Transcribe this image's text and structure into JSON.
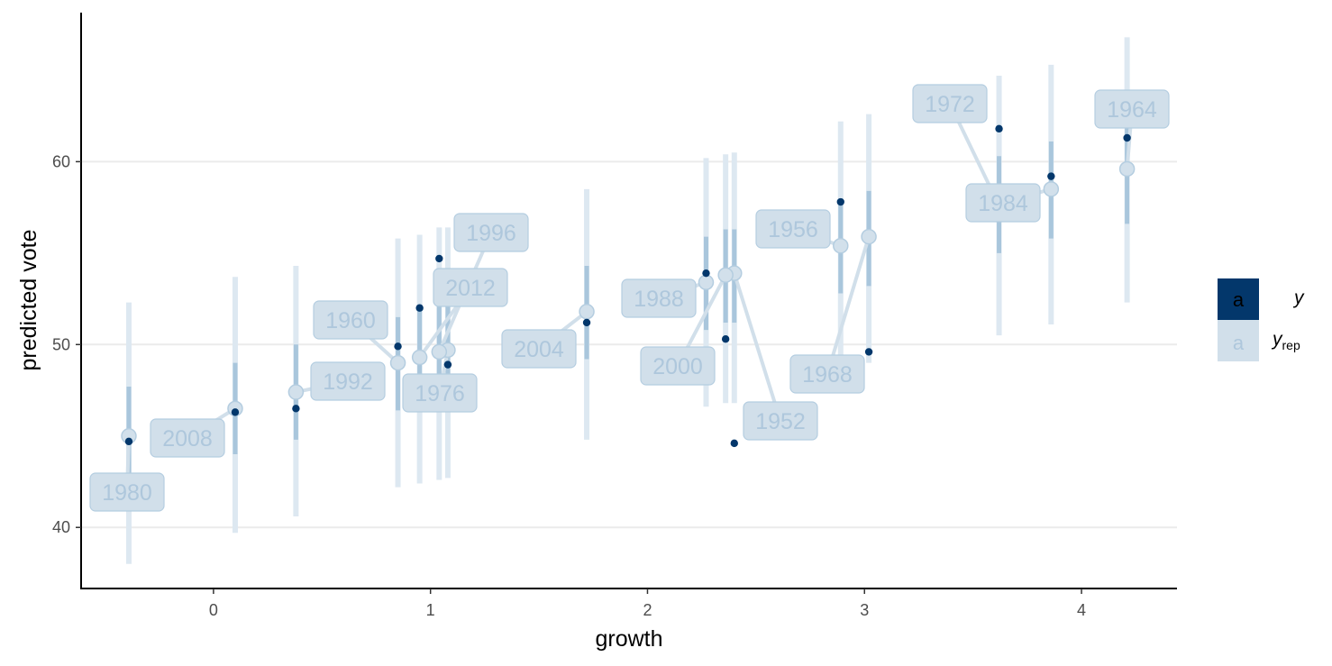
{
  "colors": {
    "y": "#03376b",
    "yrep_point": "#d2e0eb",
    "yrep_inner": "#a9c6dc",
    "yrep_outer": "#dde8f1",
    "label_fill": "#d1dfea",
    "label_border": "#b4cde0",
    "label_text": "#aec7dc",
    "grid": "#ebebeb",
    "axis": "#000000"
  },
  "legend": {
    "key_glyph": "a",
    "y_label": "y",
    "yrep_label_main": "y",
    "yrep_label_sub": "rep"
  },
  "chart_data": {
    "type": "scatter",
    "xlabel": "growth",
    "ylabel": "predicted vote",
    "xlim": [
      -0.61,
      4.44
    ],
    "ylim": [
      36.66,
      68.15
    ],
    "x_ticks": [
      0,
      1,
      2,
      3,
      4
    ],
    "y_ticks": [
      40,
      50,
      60
    ],
    "grid": "horizontal major",
    "legend_position": "right",
    "points": [
      {
        "year": "1952",
        "growth": 2.4,
        "vote": 44.6,
        "yrep_median": 53.9,
        "inner": [
          51.2,
          56.3
        ],
        "outer": [
          46.8,
          60.5
        ]
      },
      {
        "year": "1956",
        "growth": 2.89,
        "vote": 57.8,
        "yrep_median": 55.4,
        "inner": [
          52.8,
          57.9
        ],
        "outer": [
          48.6,
          62.2
        ]
      },
      {
        "year": "1960",
        "growth": 0.85,
        "vote": 49.9,
        "yrep_median": 49.0,
        "inner": [
          46.4,
          51.5
        ],
        "outer": [
          42.2,
          55.8
        ]
      },
      {
        "year": "1964",
        "growth": 4.21,
        "vote": 61.3,
        "yrep_median": 59.6,
        "inner": [
          56.6,
          62.4
        ],
        "outer": [
          52.3,
          66.8
        ]
      },
      {
        "year": "1968",
        "growth": 3.02,
        "vote": 49.6,
        "yrep_median": 55.9,
        "inner": [
          53.2,
          58.4
        ],
        "outer": [
          49.0,
          62.6
        ]
      },
      {
        "year": "1972",
        "growth": 3.62,
        "vote": 61.8,
        "yrep_median": 57.6,
        "inner": [
          55.0,
          60.3
        ],
        "outer": [
          50.5,
          64.7
        ]
      },
      {
        "year": "1976",
        "growth": 1.08,
        "vote": 48.9,
        "yrep_median": 49.7,
        "inner": [
          47.2,
          52.3
        ],
        "outer": [
          42.7,
          56.4
        ]
      },
      {
        "year": "1980",
        "growth": -0.39,
        "vote": 44.7,
        "yrep_median": 45.0,
        "inner": [
          42.3,
          47.7
        ],
        "outer": [
          38.0,
          52.3
        ]
      },
      {
        "year": "1984",
        "growth": 3.86,
        "vote": 59.2,
        "yrep_median": 58.5,
        "inner": [
          55.8,
          61.1
        ],
        "outer": [
          51.1,
          65.3
        ]
      },
      {
        "year": "1988",
        "growth": 2.27,
        "vote": 53.9,
        "yrep_median": 53.4,
        "inner": [
          50.8,
          55.9
        ],
        "outer": [
          46.6,
          60.2
        ]
      },
      {
        "year": "1992",
        "growth": 0.38,
        "vote": 46.5,
        "yrep_median": 47.4,
        "inner": [
          44.8,
          50.0
        ],
        "outer": [
          40.6,
          54.3
        ]
      },
      {
        "year": "1996",
        "growth": 1.04,
        "vote": 54.7,
        "yrep_median": 49.6,
        "inner": [
          47.0,
          52.2
        ],
        "outer": [
          42.6,
          56.4
        ]
      },
      {
        "year": "2000",
        "growth": 2.36,
        "vote": 50.3,
        "yrep_median": 53.8,
        "inner": [
          51.2,
          56.3
        ],
        "outer": [
          46.8,
          60.4
        ]
      },
      {
        "year": "2004",
        "growth": 1.72,
        "vote": 51.2,
        "yrep_median": 51.8,
        "inner": [
          49.2,
          54.3
        ],
        "outer": [
          44.8,
          58.5
        ]
      },
      {
        "year": "2008",
        "growth": 0.1,
        "vote": 46.3,
        "yrep_median": 46.5,
        "inner": [
          44.0,
          49.0
        ],
        "outer": [
          39.7,
          53.7
        ]
      },
      {
        "year": "2012",
        "growth": 0.95,
        "vote": 52.0,
        "yrep_median": 49.3,
        "inner": [
          46.7,
          51.9
        ],
        "outer": [
          42.4,
          56.0
        ]
      }
    ]
  }
}
